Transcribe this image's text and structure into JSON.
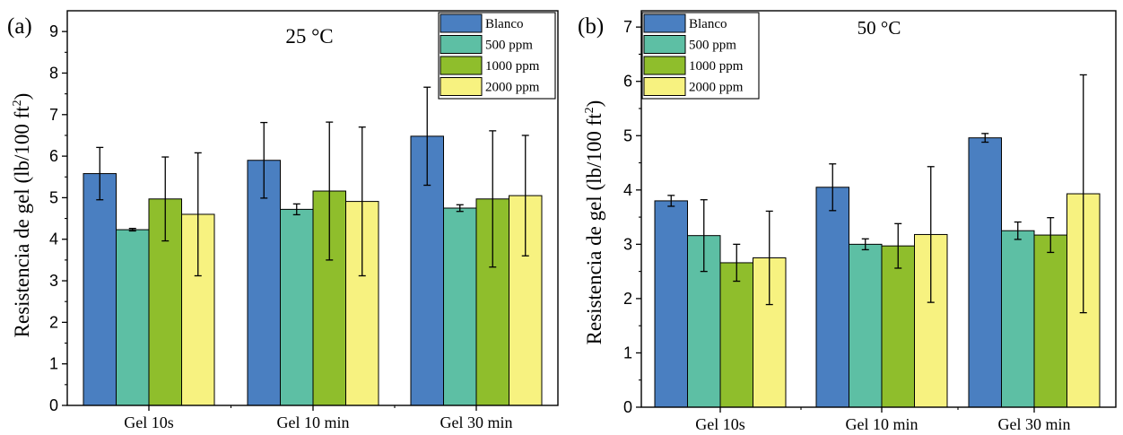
{
  "chart_data": [
    {
      "type": "bar",
      "panel_label": "(a)",
      "annotation": "25 °C",
      "categories": [
        "Gel 10s",
        "Gel 10 min",
        "Gel 30 min"
      ],
      "ylabel_main": "Resistencia de gel (lb/100 ft",
      "ylabel_sup": "2",
      "ylabel_tail": ")",
      "ylim": [
        0,
        9.5
      ],
      "yticks": [
        "0",
        "1",
        "2",
        "3",
        "4",
        "5",
        "6",
        "7",
        "8",
        "9"
      ],
      "grid": false,
      "legend_position": "top-right",
      "series": [
        {
          "name": "Blanco",
          "color": "#4a7fc1",
          "values": [
            5.58,
            5.9,
            6.48
          ],
          "errors": [
            0.63,
            0.91,
            1.18
          ]
        },
        {
          "name": "500 ppm",
          "color": "#5dbfa4",
          "values": [
            4.23,
            4.72,
            4.75
          ],
          "errors": [
            0.03,
            0.13,
            0.08
          ]
        },
        {
          "name": "1000 ppm",
          "color": "#8fbe2c",
          "values": [
            4.97,
            5.16,
            4.97
          ],
          "errors": [
            1.01,
            1.66,
            1.64
          ]
        },
        {
          "name": "2000 ppm",
          "color": "#f7f280",
          "values": [
            4.6,
            4.91,
            5.05
          ],
          "errors": [
            1.48,
            1.79,
            1.45
          ]
        }
      ]
    },
    {
      "type": "bar",
      "panel_label": "(b)",
      "annotation": "50 °C",
      "categories": [
        "Gel 10s",
        "Gel 10 min",
        "Gel 30 min"
      ],
      "ylabel_main": "Resistencia de gel (lb/100 ft",
      "ylabel_sup": "2",
      "ylabel_tail": ")",
      "ylim": [
        0,
        7.3
      ],
      "yticks": [
        "0",
        "1",
        "2",
        "3",
        "4",
        "5",
        "6",
        "7"
      ],
      "grid": false,
      "legend_position": "top-left",
      "series": [
        {
          "name": "Blanco",
          "color": "#4a7fc1",
          "values": [
            3.8,
            4.05,
            4.96
          ],
          "errors": [
            0.1,
            0.43,
            0.08
          ]
        },
        {
          "name": "500 ppm",
          "color": "#5dbfa4",
          "values": [
            3.16,
            3.0,
            3.25
          ],
          "errors": [
            0.66,
            0.1,
            0.16
          ]
        },
        {
          "name": "1000 ppm",
          "color": "#8fbe2c",
          "values": [
            2.66,
            2.97,
            3.17
          ],
          "errors": [
            0.34,
            0.41,
            0.32
          ]
        },
        {
          "name": "2000 ppm",
          "color": "#f7f280",
          "values": [
            2.75,
            3.18,
            3.93
          ],
          "errors": [
            0.86,
            1.25,
            2.19
          ]
        }
      ]
    }
  ]
}
